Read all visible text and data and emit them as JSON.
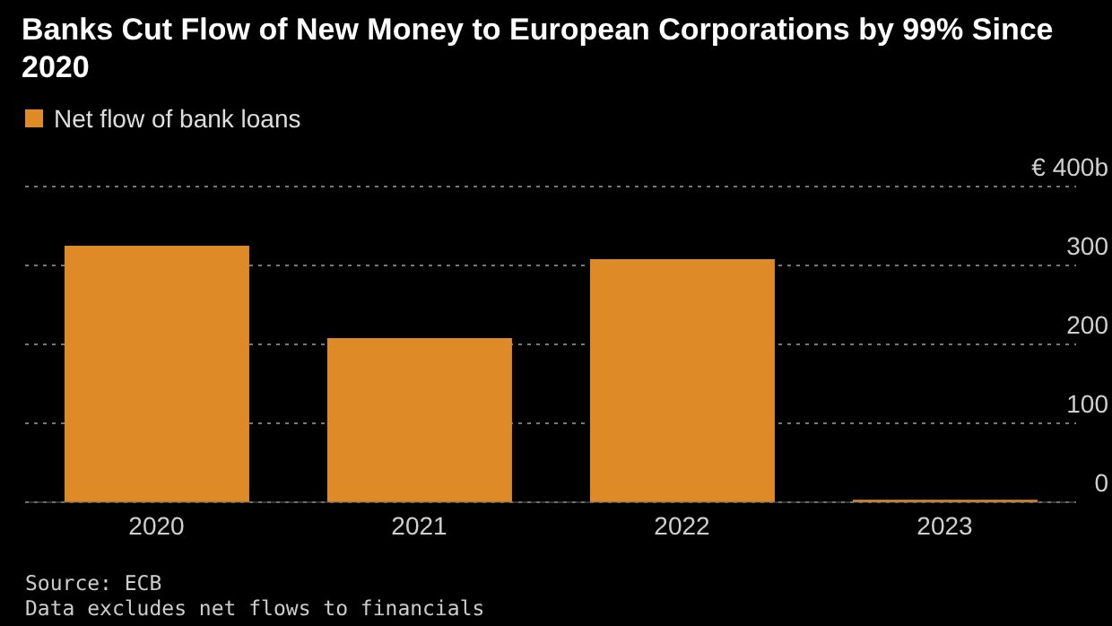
{
  "chart_data": {
    "type": "bar",
    "title": "Banks Cut Flow of New Money to European Corporations by 99% Since 2020",
    "categories": [
      "2020",
      "2021",
      "2022",
      "2023"
    ],
    "series": [
      {
        "name": "Net flow of bank loans",
        "color": "#dd8a27",
        "values": [
          325,
          208,
          308,
          3
        ]
      }
    ],
    "ylim": [
      0,
      400
    ],
    "yticks": [
      0,
      100,
      200,
      300,
      {
        "value": 400,
        "label": "€ 400b"
      }
    ],
    "grid": "y",
    "legend": "top left",
    "annotations": [
      "Source: ECB",
      "Data excludes net flows to financials"
    ]
  }
}
